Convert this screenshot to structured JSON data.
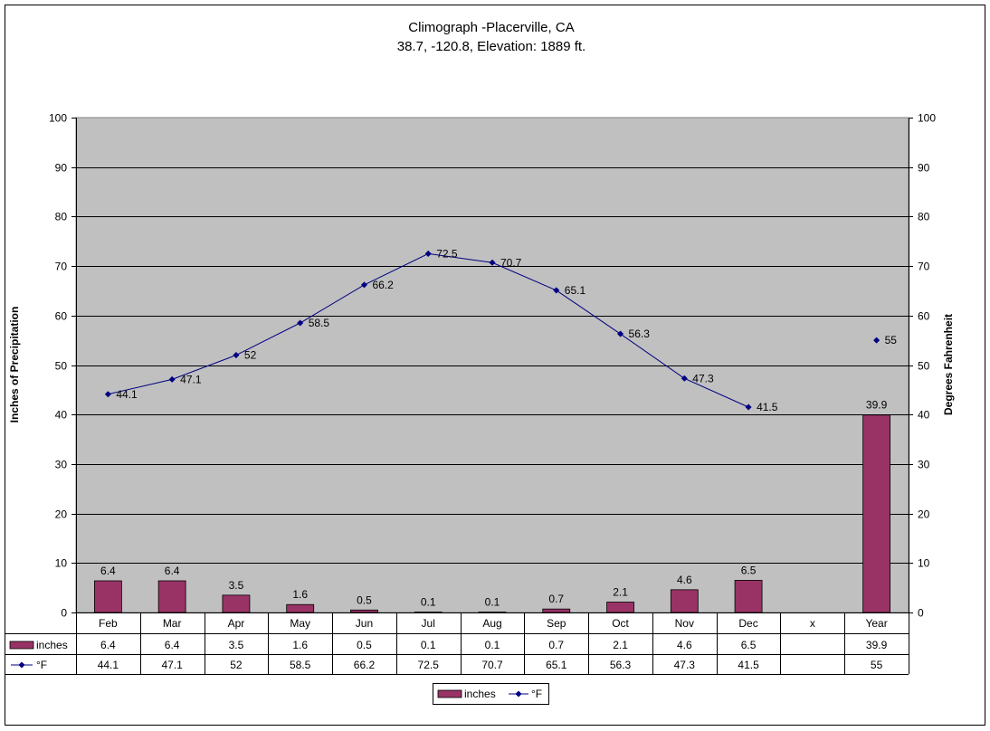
{
  "chart_data": {
    "type": "bar",
    "title": "Climograph -Placerville, CA",
    "subtitle": "38.7, -120.8, Elevation: 1889 ft.",
    "ylabel": "Inches of Precipitation",
    "y2label": "Degrees Fahrenheit",
    "ylim": [
      0,
      100
    ],
    "y2lim": [
      0,
      100
    ],
    "yticks": [
      0,
      10,
      20,
      30,
      40,
      50,
      60,
      70,
      80,
      90,
      100
    ],
    "grid": true,
    "categories": [
      "Feb",
      "Mar",
      "Apr",
      "May",
      "Jun",
      "Jul",
      "Aug",
      "Sep",
      "Oct",
      "Nov",
      "Dec",
      "x",
      "Year"
    ],
    "series": [
      {
        "name": "inches",
        "type": "bar",
        "axis": "left",
        "color": "#993366",
        "values": [
          6.4,
          6.4,
          3.5,
          1.6,
          0.5,
          0.1,
          0.1,
          0.7,
          2.1,
          4.6,
          6.5,
          null,
          39.9
        ]
      },
      {
        "name": "°F",
        "type": "line",
        "axis": "right",
        "color": "#000080",
        "values": [
          44.1,
          47.1,
          52,
          58.5,
          66.2,
          72.5,
          70.7,
          65.1,
          56.3,
          47.3,
          41.5,
          null,
          55
        ]
      }
    ],
    "legend_position": "bottom",
    "plot_background": "#c0c0c0"
  }
}
